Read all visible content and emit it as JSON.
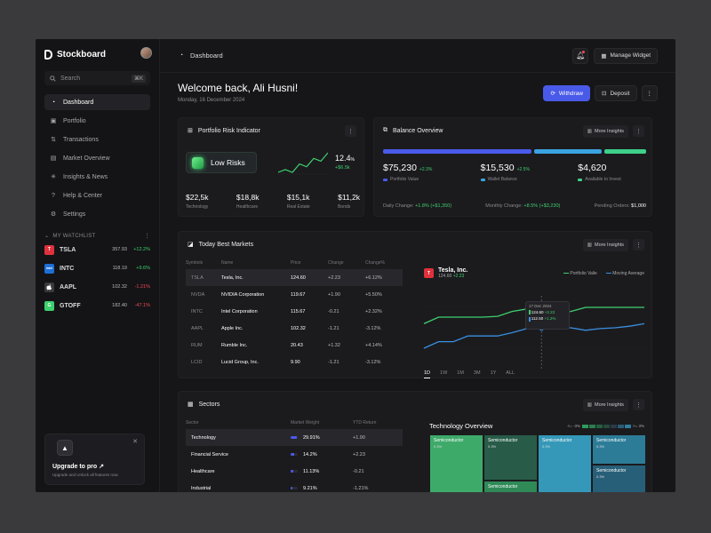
{
  "brand": {
    "name": "Stockboard"
  },
  "search": {
    "placeholder": "Search",
    "shortcut": "⌘K"
  },
  "nav": [
    {
      "label": "Dashboard",
      "icon": "dashboard-icon",
      "glyph": "◔",
      "active": true
    },
    {
      "label": "Portfolio",
      "icon": "briefcase-icon",
      "glyph": "▣",
      "active": false
    },
    {
      "label": "Transactions",
      "icon": "transactions-icon",
      "glyph": "⇅",
      "active": false
    },
    {
      "label": "Market Overview",
      "icon": "chart-icon",
      "glyph": "▤",
      "active": false
    },
    {
      "label": "Insights & News",
      "icon": "insights-icon",
      "glyph": "✳",
      "active": false
    },
    {
      "label": "Help & Center",
      "icon": "help-icon",
      "glyph": "?",
      "active": false
    },
    {
      "label": "Settings",
      "icon": "gear-icon",
      "glyph": "⚙",
      "active": false
    }
  ],
  "watchlist": {
    "title": "MY WATCHLIST",
    "items": [
      {
        "symbol": "TSLA",
        "price": "357.93",
        "change": "+12.2%",
        "dir": "up",
        "color": "#e0313c",
        "logo": "T"
      },
      {
        "symbol": "INTC",
        "price": "118.19",
        "change": "+9.6%",
        "dir": "up",
        "color": "#1d6fd6",
        "logo": "intel"
      },
      {
        "symbol": "AAPL",
        "price": "102.32",
        "change": "-1.21%",
        "dir": "down",
        "color": "#3a3a3e",
        "logo": ""
      },
      {
        "symbol": "GTOFF",
        "price": "182.40",
        "change": "-47.1%",
        "dir": "down",
        "color": "#3ecf6e",
        "logo": "G"
      }
    ]
  },
  "upgrade": {
    "title": "Upgrade to pro ↗",
    "subtitle": "Upgrade and Unlock all features now"
  },
  "topbar": {
    "title": "Dashboard",
    "manage_widget": "Manage Widget"
  },
  "header": {
    "welcome": "Welcome back, Ali Husni!",
    "date": "Monday, 16 December 2024",
    "withdraw": "Withdraw",
    "deposit": "Deposit"
  },
  "risk": {
    "title": "Portfolio Risk Indicator",
    "level": "Low Risks",
    "value": "12.4",
    "unit": "%",
    "delta": "+$6.5k",
    "stats": [
      {
        "value": "$22,5k",
        "label": "Technology"
      },
      {
        "value": "$18,8k",
        "label": "Healthcare"
      },
      {
        "value": "$15,1k",
        "label": "Real Estate"
      },
      {
        "value": "$11,2k",
        "label": "Bonds"
      }
    ],
    "spark": [
      3,
      4,
      3,
      6,
      5,
      8,
      7,
      10
    ]
  },
  "balance": {
    "title": "Balance Overview",
    "insights_label": "More Insights",
    "allocation": [
      0.6,
      0.27,
      0.17
    ],
    "items": [
      {
        "value": "$75,230",
        "change": "+2.3%",
        "label": "Portfolio Value",
        "color": "#4a5ae8"
      },
      {
        "value": "$15,530",
        "change": "+2.5%",
        "label": "Wallet Balance",
        "color": "#3aa3e0"
      },
      {
        "value": "$4,620",
        "change": "",
        "label": "Available to Invest",
        "color": "#3ecf8a"
      }
    ],
    "daily_label": "Daily Change:",
    "daily_value": "+1.8% (+$1,350)",
    "monthly_label": "Monthly Change:",
    "monthly_value": "+8.5% (+$3,230)",
    "pending_label": "Pending Orders:",
    "pending_value": "$1,000"
  },
  "markets": {
    "title": "Today Best Markets",
    "insights_label": "More Insights",
    "columns": [
      "Symbols",
      "Name",
      "Price",
      "Change",
      "Change%"
    ],
    "rows": [
      {
        "symbol": "TSLA",
        "name": "Tesla, Inc.",
        "price": "124.60",
        "change": "+2.23",
        "pct": "+6.12%",
        "dir": "up",
        "selected": true
      },
      {
        "symbol": "NVDA",
        "name": "NVIDIA Corporation",
        "price": "119.67",
        "change": "+1.90",
        "pct": "+5.50%",
        "dir": "up",
        "selected": false
      },
      {
        "symbol": "INTC",
        "name": "Intel Corporation",
        "price": "115.67",
        "change": "-0.21",
        "pct": "+2.32%",
        "dir": "up",
        "selected": false
      },
      {
        "symbol": "AAPL",
        "name": "Apple Inc.",
        "price": "102.32",
        "change": "-1.21",
        "pct": "-3.12%",
        "dir": "down",
        "selected": false
      },
      {
        "symbol": "RUM",
        "name": "Rumble Inc.",
        "price": "20.43",
        "change": "+1.32",
        "pct": "+4.14%",
        "dir": "up",
        "selected": false
      },
      {
        "symbol": "LCID",
        "name": "Lucid Group, Inc.",
        "price": "9.90",
        "change": "-1.21",
        "pct": "-3.12%",
        "dir": "down",
        "selected": false
      }
    ],
    "chart": {
      "symbol": "Tesla, Inc.",
      "price": "124.60",
      "change": "+2.23",
      "legend_a": "Portfolio Valie",
      "legend_b": "Moving Average",
      "tooltip_date": "17 Dec 2024",
      "tooltip_a_value": "124.60",
      "tooltip_a_change": "+2.23",
      "tooltip_b_value": "112.50",
      "tooltip_b_change": "+1.2%",
      "ranges": [
        "1D",
        "1W",
        "1M",
        "3M",
        "1Y",
        "ALL"
      ],
      "active_range": "1D"
    }
  },
  "chart_data": {
    "type": "line",
    "series": [
      {
        "name": "Portfolio Valie",
        "color": "#3ecf6e",
        "values": [
          55,
          63,
          63,
          63,
          63,
          64,
          70,
          73,
          69,
          69,
          70,
          75,
          75,
          75,
          75,
          75
        ]
      },
      {
        "name": "Moving Average",
        "color": "#3a8fe0",
        "values": [
          25,
          33,
          33,
          40,
          40,
          40,
          44,
          49,
          49,
          50,
          50,
          47,
          49,
          50,
          52,
          55
        ]
      }
    ],
    "ylim": [
      0,
      100
    ],
    "highlight_index": 8
  },
  "sectors": {
    "title": "Sectors",
    "insights_label": "More Insights",
    "columns": [
      "Sector",
      "Market Weight",
      "YTD Return"
    ],
    "rows": [
      {
        "name": "Technology",
        "weight": "29.91%",
        "weight_pct": 0.9,
        "ret": "+1.90",
        "dir": "up",
        "selected": true
      },
      {
        "name": "Financial Service",
        "weight": "14.2%",
        "weight_pct": 0.45,
        "ret": "+2.23",
        "dir": "up",
        "selected": false
      },
      {
        "name": "Healthcare",
        "weight": "11.13%",
        "weight_pct": 0.35,
        "ret": "-0.21",
        "dir": "down",
        "selected": false
      },
      {
        "name": "Industrial",
        "weight": "9.21%",
        "weight_pct": 0.3,
        "ret": "-1.21%",
        "dir": "down",
        "selected": false
      }
    ],
    "overview_title": "Technology Overview",
    "scale_low": "<= -3%",
    "scale_high": ">= 3%",
    "treemap": [
      {
        "label": "Semiconductor",
        "pct": "0.3%"
      },
      {
        "label": "Semiconductor",
        "pct": "0.3%"
      },
      {
        "label": "Semiconductor",
        "pct": "0.3%"
      },
      {
        "label": "Semiconductor",
        "pct": "0.3%"
      },
      {
        "label": "Semiconductor",
        "pct": "0.3%"
      },
      {
        "label": "Semiconductor",
        "pct": ""
      }
    ]
  }
}
